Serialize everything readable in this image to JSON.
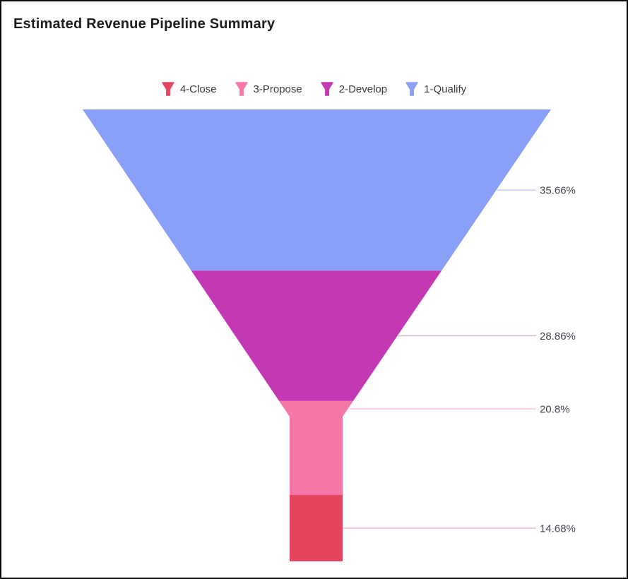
{
  "title": "Estimated Revenue Pipeline Summary",
  "legend": {
    "position": "top",
    "items": [
      {
        "label": "4-Close",
        "color": "#e6455f"
      },
      {
        "label": "3-Propose",
        "color": "#f577a8"
      },
      {
        "label": "2-Develop",
        "color": "#c439b3"
      },
      {
        "label": "1-Qualify",
        "color": "#8a9ff8"
      }
    ]
  },
  "chart_data": {
    "type": "funnel",
    "title": "Estimated Revenue Pipeline Summary",
    "orientation": "inverted-pyramid-with-neck",
    "stages_top_to_bottom": [
      {
        "name": "1-Qualify",
        "value": 35.66,
        "label": "35.66%",
        "color": "#8a9ff8",
        "tick_color": "#b9c6f5"
      },
      {
        "name": "2-Develop",
        "value": 28.86,
        "label": "28.86%",
        "color": "#c439b3",
        "tick_color": "#ddaed8"
      },
      {
        "name": "3-Propose",
        "value": 20.8,
        "label": "20.8%",
        "color": "#f577a8",
        "tick_color": "#f6b8cd"
      },
      {
        "name": "4-Close",
        "value": 14.68,
        "label": "14.68%",
        "color": "#e6455f",
        "tick_color": "#f2a9b4"
      }
    ],
    "value_unit": "percent",
    "label_color": "#45474e",
    "legend_entries_left_to_right": [
      "4-Close",
      "3-Propose",
      "2-Develop",
      "1-Qualify"
    ],
    "grid": false
  }
}
